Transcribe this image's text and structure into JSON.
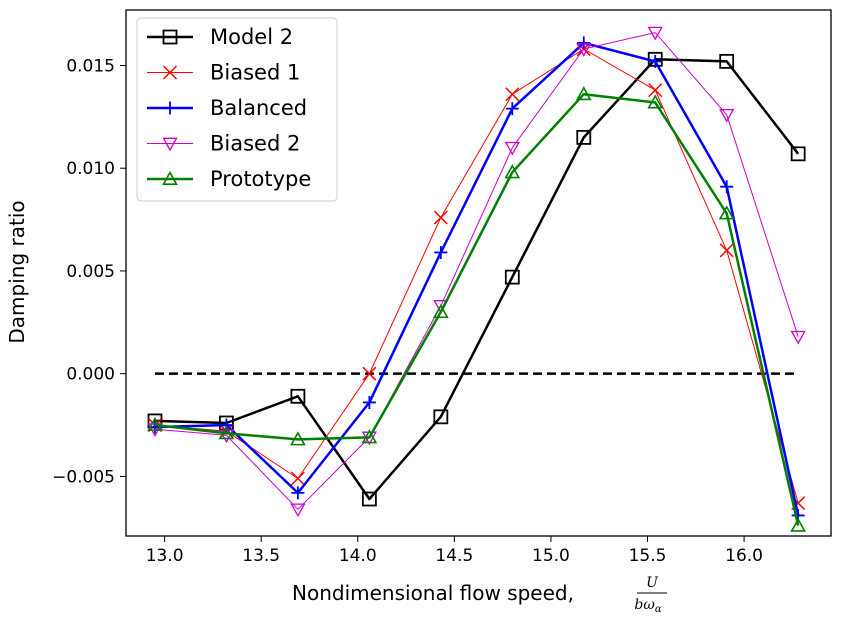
{
  "chart_data": {
    "type": "line",
    "title": "",
    "xlabel": "Nondimensional flow speed,",
    "xlabel_fraction": {
      "numerator": "U",
      "denominator": "bω",
      "denominator_subscript": "α"
    },
    "ylabel": "Damping ratio",
    "xlim": [
      12.8,
      16.45
    ],
    "ylim": [
      -0.0079,
      0.0177
    ],
    "x_ticks": [
      13.0,
      13.5,
      14.0,
      14.5,
      15.0,
      15.5,
      16.0
    ],
    "x_tick_labels": [
      "13.0",
      "13.5",
      "14.0",
      "14.5",
      "15.0",
      "15.5",
      "16.0"
    ],
    "y_ticks": [
      -0.005,
      0.0,
      0.005,
      0.01,
      0.015
    ],
    "y_tick_labels": [
      "−0.005",
      "0.000",
      "0.005",
      "0.010",
      "0.015"
    ],
    "grid": false,
    "legend_position": "top-left",
    "x": [
      12.95,
      13.32,
      13.69,
      14.06,
      14.43,
      14.8,
      15.17,
      15.54,
      15.91,
      16.28
    ],
    "series": [
      {
        "name": "Model 2",
        "color": "#000000",
        "marker": "square",
        "line_width": 2.5,
        "values": [
          -0.0023,
          -0.0024,
          -0.0011,
          -0.0061,
          -0.0021,
          0.0047,
          0.0115,
          0.0153,
          0.0152,
          0.0107
        ]
      },
      {
        "name": "Biased 1",
        "color": "#ff0000",
        "marker": "x",
        "line_width": 1,
        "values": [
          -0.0025,
          -0.0028,
          -0.0051,
          0.0,
          0.0076,
          0.0136,
          0.0158,
          0.0138,
          0.006,
          -0.0063
        ]
      },
      {
        "name": "Balanced",
        "color": "#0000ff",
        "marker": "plus",
        "line_width": 2.5,
        "values": [
          -0.0026,
          -0.0025,
          -0.0058,
          -0.0014,
          0.0059,
          0.0129,
          0.0161,
          0.0152,
          0.0091,
          -0.0069
        ]
      },
      {
        "name": "Biased 2",
        "color": "#cc00cc",
        "marker": "triangle-down",
        "line_width": 1,
        "values": [
          -0.0027,
          -0.003,
          -0.0066,
          -0.0031,
          0.0033,
          0.011,
          0.0158,
          0.0166,
          0.0126,
          0.0018
        ]
      },
      {
        "name": "Prototype",
        "color": "#008000",
        "marker": "triangle-up",
        "line_width": 2.5,
        "values": [
          -0.0025,
          -0.0029,
          -0.0032,
          -0.0031,
          0.003,
          0.0098,
          0.0136,
          0.0132,
          0.0078,
          -0.0074
        ]
      }
    ],
    "reference_line": {
      "y": 0.0,
      "style": "dashed",
      "color": "#000000"
    }
  }
}
